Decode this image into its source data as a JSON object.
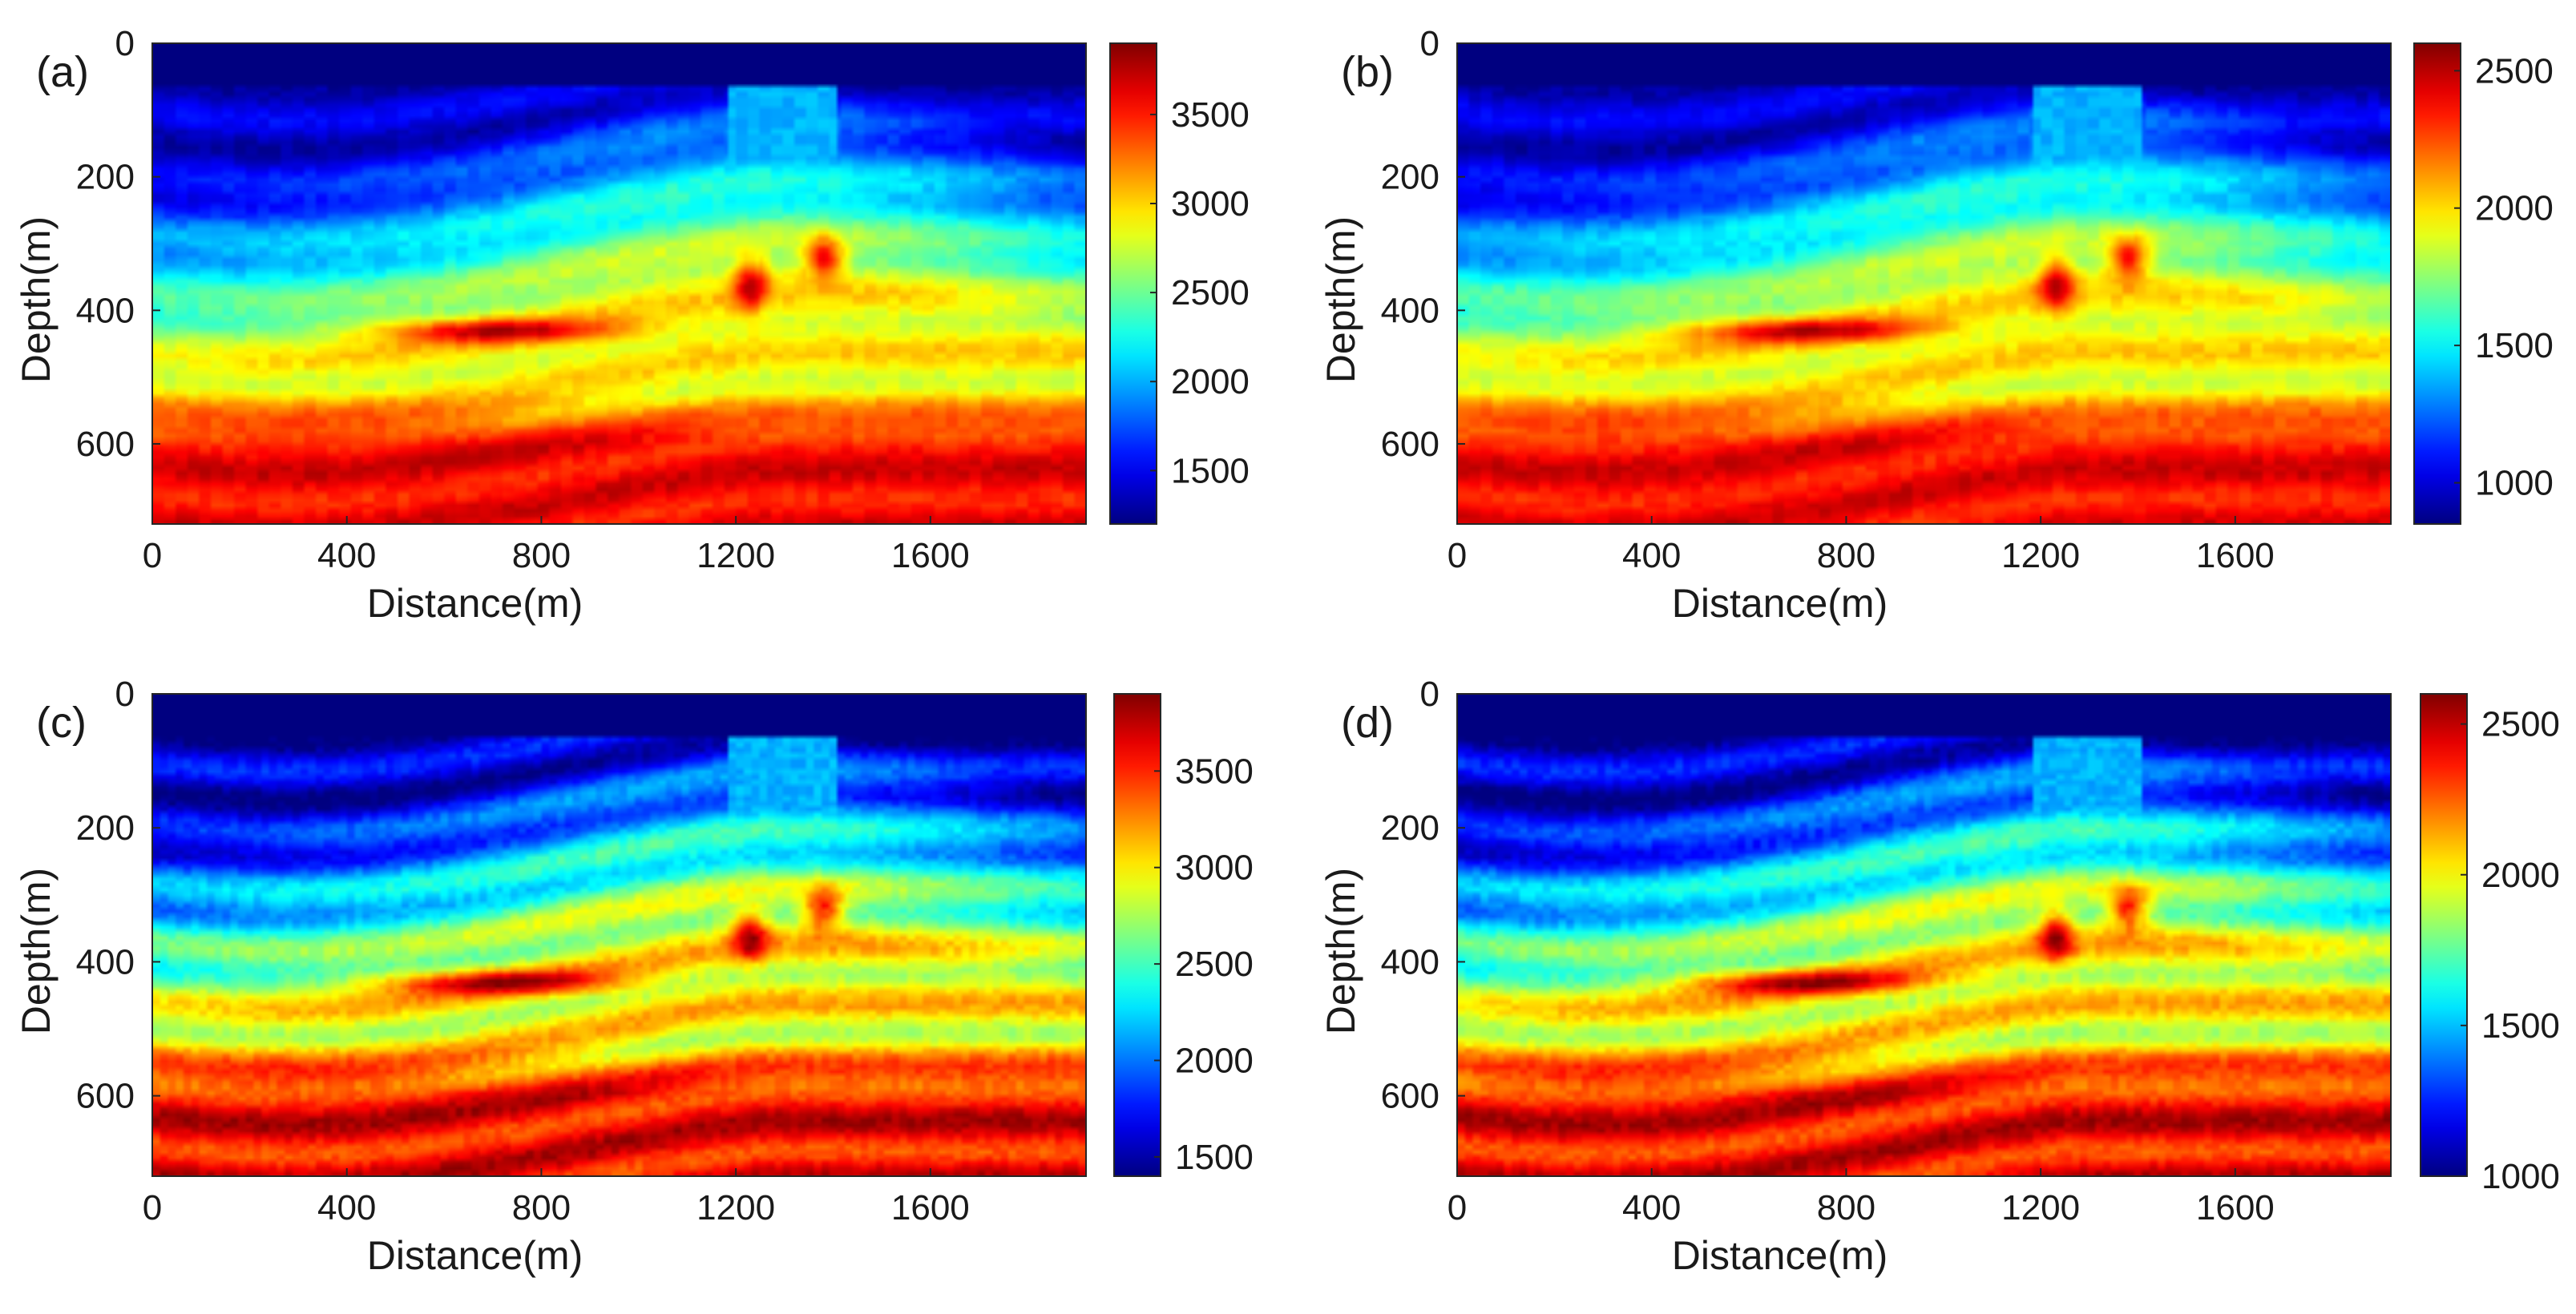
{
  "chart_data": [
    {
      "type": "heatmap",
      "panel_label": "(a)",
      "xlabel": "Distance(m)",
      "ylabel": "Depth(m)",
      "xlim": [
        0,
        1920
      ],
      "ylim": [
        0,
        720
      ],
      "y_reversed": true,
      "xticks": [
        0,
        400,
        800,
        1200,
        1600
      ],
      "xtick_labels": [
        "0",
        "400",
        "800",
        "1200",
        "1600"
      ],
      "yticks": [
        0,
        200,
        400,
        600
      ],
      "ytick_labels": [
        "0",
        "200",
        "400",
        "600"
      ],
      "colormap": "jet",
      "clim": [
        1200,
        3900
      ],
      "colorbar_ticks": [
        1500,
        2000,
        2500,
        3000,
        3500
      ],
      "colorbar_tick_labels": [
        "1500",
        "2000",
        "2500",
        "3000",
        "3500"
      ],
      "smooth": true
    },
    {
      "type": "heatmap",
      "panel_label": "(b)",
      "xlabel": "Distance(m)",
      "ylabel": "Depth(m)",
      "xlim": [
        0,
        1920
      ],
      "ylim": [
        0,
        720
      ],
      "y_reversed": true,
      "xticks": [
        0,
        400,
        800,
        1200,
        1600
      ],
      "xtick_labels": [
        "0",
        "400",
        "800",
        "1200",
        "1600"
      ],
      "yticks": [
        0,
        200,
        400,
        600
      ],
      "ytick_labels": [
        "0",
        "200",
        "400",
        "600"
      ],
      "colormap": "jet",
      "clim": [
        850,
        2600
      ],
      "colorbar_ticks": [
        1000,
        1500,
        2000,
        2500
      ],
      "colorbar_tick_labels": [
        "1000",
        "1500",
        "2000",
        "2500"
      ],
      "smooth": true
    },
    {
      "type": "heatmap",
      "panel_label": "(c)",
      "xlabel": "Distance(m)",
      "ylabel": "Depth(m)",
      "xlim": [
        0,
        1920
      ],
      "ylim": [
        0,
        720
      ],
      "y_reversed": true,
      "xticks": [
        0,
        400,
        800,
        1200,
        1600
      ],
      "xtick_labels": [
        "0",
        "400",
        "800",
        "1200",
        "1600"
      ],
      "yticks": [
        0,
        200,
        400,
        600
      ],
      "ytick_labels": [
        "0",
        "200",
        "400",
        "600"
      ],
      "colormap": "jet",
      "clim": [
        1400,
        3900
      ],
      "colorbar_ticks": [
        1500,
        2000,
        2500,
        3000,
        3500
      ],
      "colorbar_tick_labels": [
        "1500",
        "2000",
        "2500",
        "3000",
        "3500"
      ],
      "smooth": false
    },
    {
      "type": "heatmap",
      "panel_label": "(d)",
      "xlabel": "Distance(m)",
      "ylabel": "Depth(m)",
      "xlim": [
        0,
        1920
      ],
      "ylim": [
        0,
        720
      ],
      "y_reversed": true,
      "xticks": [
        0,
        400,
        800,
        1200,
        1600
      ],
      "xtick_labels": [
        "0",
        "400",
        "800",
        "1200",
        "1600"
      ],
      "yticks": [
        0,
        200,
        400,
        600
      ],
      "ytick_labels": [
        "0",
        "200",
        "400",
        "600"
      ],
      "colormap": "jet",
      "clim": [
        1000,
        2600
      ],
      "colorbar_ticks": [
        1000,
        1500,
        2000,
        2500
      ],
      "colorbar_tick_labels": [
        "1000",
        "1500",
        "2000",
        "2500"
      ],
      "smooth": false
    }
  ]
}
